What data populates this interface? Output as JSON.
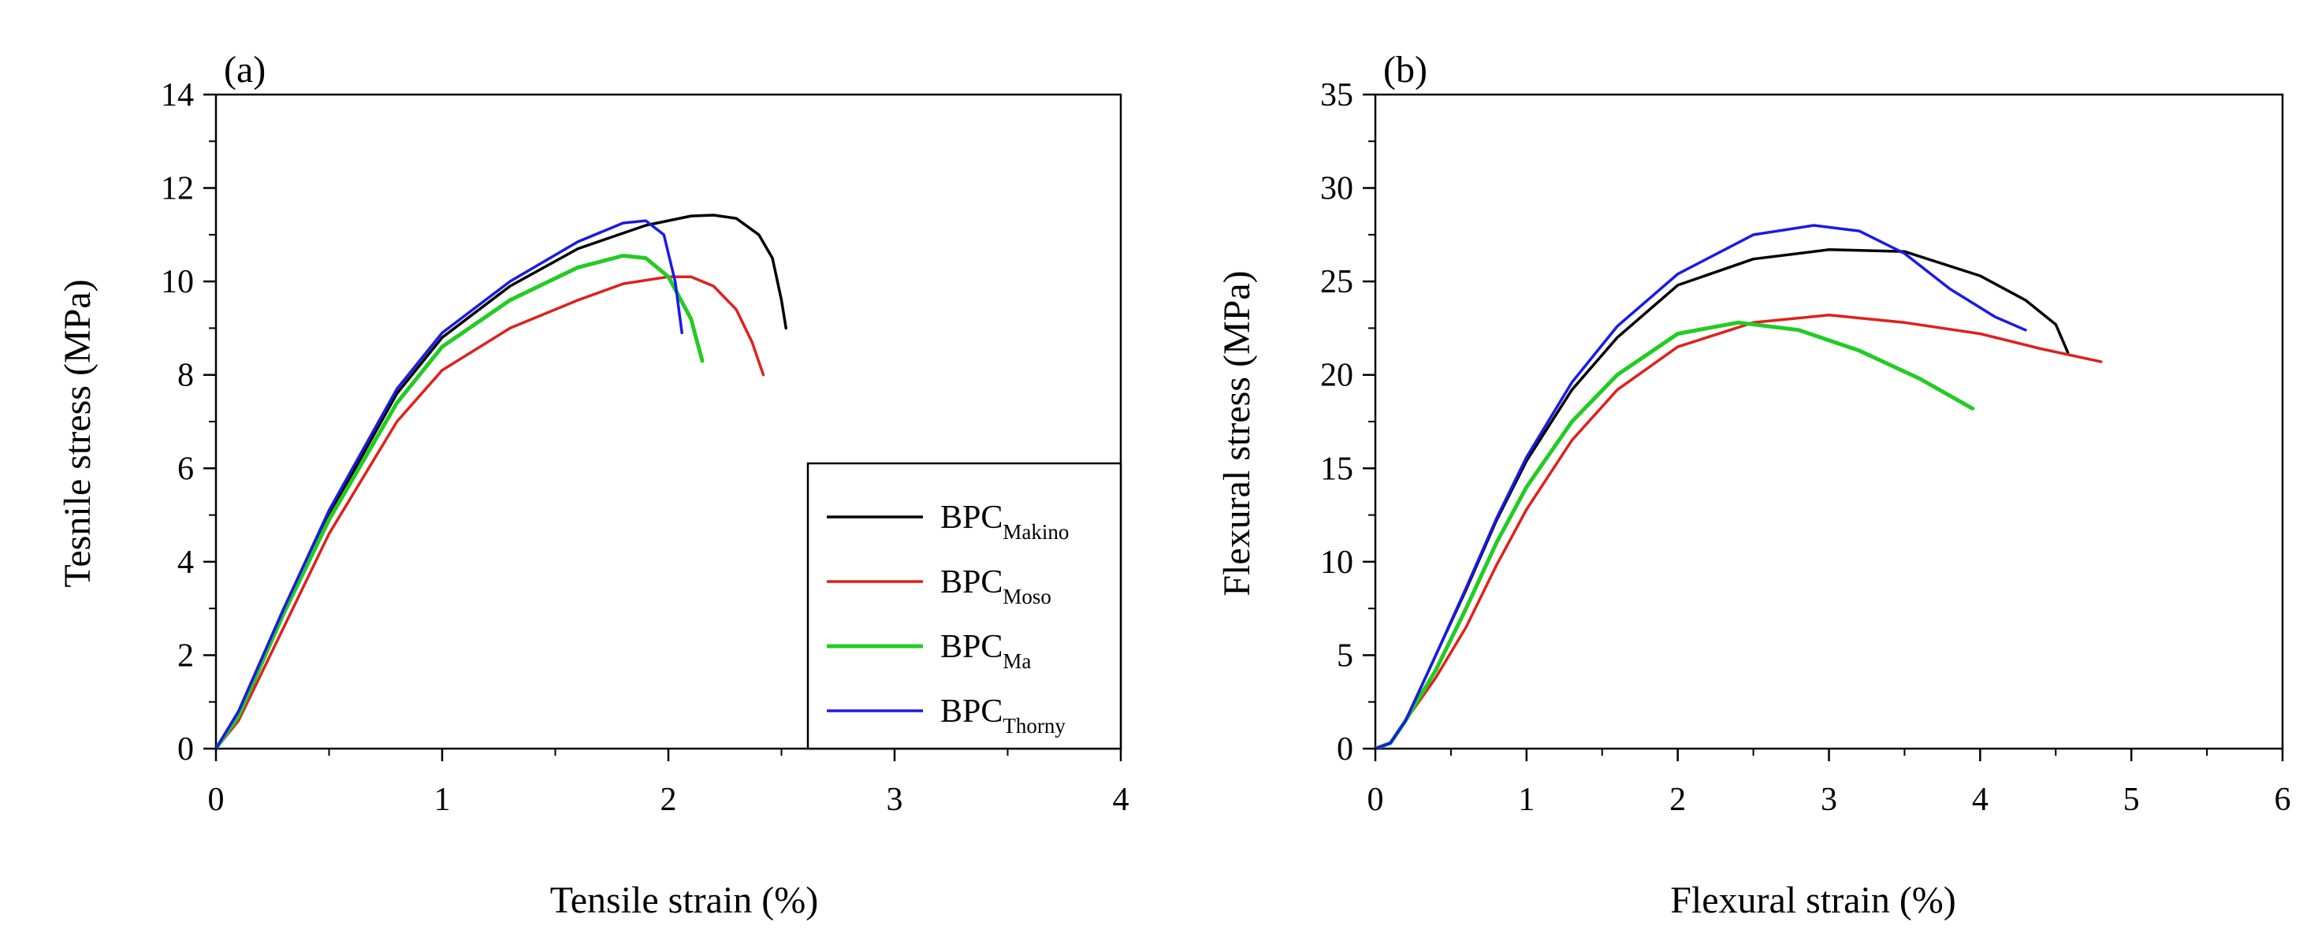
{
  "chart_data": [
    {
      "type": "line",
      "panel_label": "(a)",
      "xlabel": "Tensile strain (%)",
      "ylabel": "Tesnile stress (MPa)",
      "xlim": [
        0,
        4
      ],
      "ylim": [
        0,
        14
      ],
      "xticks": [
        "0",
        "1",
        "2",
        "3",
        "4"
      ],
      "yticks": [
        "0",
        "2",
        "4",
        "6",
        "8",
        "10",
        "12",
        "14"
      ],
      "legend": {
        "position": "bottom-right",
        "entries": [
          {
            "base": "BPC",
            "sub": "Makino",
            "color": "#000000"
          },
          {
            "base": "BPC",
            "sub": "Moso",
            "color": "#e0201c"
          },
          {
            "base": "BPC",
            "sub": "Ma",
            "color": "#22cc22"
          },
          {
            "base": "BPC",
            "sub": "Thorny",
            "color": "#1a1ae6"
          }
        ]
      },
      "series": [
        {
          "name": "BPC Makino",
          "color": "#000000",
          "x": [
            0,
            0.1,
            0.3,
            0.5,
            0.8,
            1.0,
            1.3,
            1.6,
            1.9,
            2.1,
            2.2,
            2.3,
            2.4,
            2.46,
            2.5,
            2.52
          ],
          "y": [
            0,
            0.8,
            3.0,
            5.0,
            7.6,
            8.8,
            9.9,
            10.7,
            11.2,
            11.4,
            11.42,
            11.35,
            11.0,
            10.5,
            9.6,
            9.0
          ]
        },
        {
          "name": "BPC Moso",
          "color": "#e0201c",
          "x": [
            0,
            0.1,
            0.3,
            0.5,
            0.8,
            1.0,
            1.3,
            1.6,
            1.8,
            2.0,
            2.1,
            2.2,
            2.3,
            2.37,
            2.42
          ],
          "y": [
            0,
            0.6,
            2.6,
            4.6,
            7.0,
            8.1,
            9.0,
            9.6,
            9.95,
            10.1,
            10.1,
            9.9,
            9.4,
            8.7,
            8.0
          ]
        },
        {
          "name": "BPC Ma",
          "color": "#22cc22",
          "x": [
            0,
            0.1,
            0.3,
            0.5,
            0.8,
            1.0,
            1.3,
            1.6,
            1.8,
            1.9,
            2.0,
            2.1,
            2.15
          ],
          "y": [
            0,
            0.7,
            2.9,
            4.9,
            7.4,
            8.6,
            9.6,
            10.3,
            10.55,
            10.5,
            10.1,
            9.2,
            8.3
          ]
        },
        {
          "name": "BPC Thorny",
          "color": "#1a1ae6",
          "x": [
            0,
            0.1,
            0.3,
            0.5,
            0.8,
            1.0,
            1.3,
            1.6,
            1.8,
            1.9,
            1.98,
            2.03,
            2.06
          ],
          "y": [
            0,
            0.8,
            3.0,
            5.1,
            7.7,
            8.9,
            10.0,
            10.85,
            11.25,
            11.3,
            11.0,
            10.0,
            8.9
          ]
        }
      ]
    },
    {
      "type": "line",
      "panel_label": "(b)",
      "xlabel": "Flexural strain (%)",
      "ylabel": "Flexural stress (MPa)",
      "xlim": [
        0,
        6
      ],
      "ylim": [
        0,
        35
      ],
      "xticks": [
        "0",
        "1",
        "2",
        "3",
        "4",
        "5",
        "6"
      ],
      "yticks": [
        "0",
        "5",
        "10",
        "15",
        "20",
        "25",
        "30",
        "35"
      ],
      "series": [
        {
          "name": "BPC Makino",
          "color": "#000000",
          "x": [
            0,
            0.1,
            0.2,
            0.4,
            0.6,
            0.8,
            1.0,
            1.3,
            1.6,
            2.0,
            2.5,
            3.0,
            3.5,
            4.0,
            4.3,
            4.5,
            4.58
          ],
          "y": [
            0,
            0.3,
            1.5,
            5.0,
            8.5,
            12.2,
            15.4,
            19.2,
            22.0,
            24.8,
            26.2,
            26.7,
            26.6,
            25.3,
            24.0,
            22.7,
            21.2
          ]
        },
        {
          "name": "BPC Moso",
          "color": "#e0201c",
          "x": [
            0,
            0.1,
            0.2,
            0.4,
            0.6,
            0.8,
            1.0,
            1.3,
            1.6,
            2.0,
            2.5,
            3.0,
            3.5,
            4.0,
            4.4,
            4.8
          ],
          "y": [
            0,
            0.3,
            1.5,
            3.8,
            6.5,
            9.8,
            12.8,
            16.5,
            19.2,
            21.5,
            22.8,
            23.2,
            22.8,
            22.2,
            21.4,
            20.7
          ]
        },
        {
          "name": "BPC Ma",
          "color": "#22cc22",
          "x": [
            0,
            0.1,
            0.2,
            0.4,
            0.6,
            0.8,
            1.0,
            1.3,
            1.6,
            2.0,
            2.4,
            2.8,
            3.2,
            3.6,
            3.95
          ],
          "y": [
            0,
            0.3,
            1.5,
            4.2,
            7.5,
            11.0,
            14.0,
            17.5,
            20.0,
            22.2,
            22.8,
            22.4,
            21.3,
            19.8,
            18.2
          ]
        },
        {
          "name": "BPC Thorny",
          "color": "#1a1ae6",
          "x": [
            0,
            0.1,
            0.2,
            0.4,
            0.6,
            0.8,
            1.0,
            1.3,
            1.6,
            2.0,
            2.5,
            2.9,
            3.2,
            3.5,
            3.8,
            4.1,
            4.3
          ],
          "y": [
            0,
            0.3,
            1.5,
            5.0,
            8.6,
            12.3,
            15.6,
            19.6,
            22.6,
            25.4,
            27.5,
            28.0,
            27.7,
            26.5,
            24.6,
            23.1,
            22.4
          ]
        }
      ]
    }
  ]
}
